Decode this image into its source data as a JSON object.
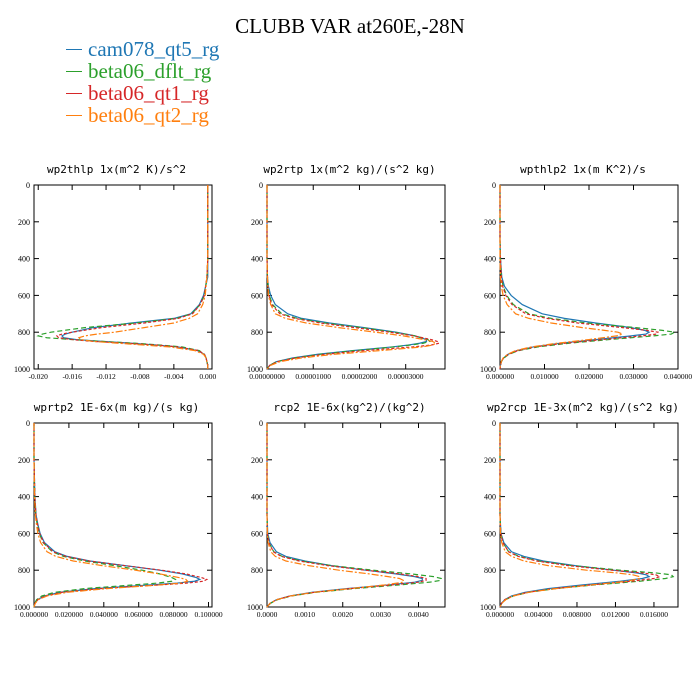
{
  "title": "CLUBB VAR at260E,-28N",
  "colors": {
    "cam078_qt5_rg": "#1f77b4",
    "beta06_dflt_rg": "#2ca02c",
    "beta06_qt1_rg": "#d62728",
    "beta06_qt2_rg": "#ff7f0e"
  },
  "legend": [
    {
      "label": "cam078_qt5_rg",
      "color": "#1f77b4"
    },
    {
      "label": "beta06_dflt_rg",
      "color": "#2ca02c"
    },
    {
      "label": "beta06_qt1_rg",
      "color": "#d62728"
    },
    {
      "label": "beta06_qt2_rg",
      "color": "#ff7f0e"
    }
  ],
  "chart_data": [
    {
      "type": "line",
      "title": "wp2thlp  1x(m^2 K)/s^2",
      "xlim": [
        -0.0205,
        0.0005
      ],
      "ylim": [
        0,
        1000
      ],
      "y_inverted": true,
      "xticks": [
        "-0.020",
        "-0.016",
        "-0.012",
        "-0.008",
        "-0.004",
        "0.000"
      ],
      "xtick_values": [
        -0.02,
        -0.016,
        -0.012,
        -0.008,
        -0.004,
        0.0
      ],
      "yticks": [
        "0",
        "200",
        "400",
        "600",
        "800",
        "1000"
      ],
      "y": [
        0,
        200,
        400,
        500,
        600,
        650,
        700,
        725,
        750,
        775,
        800,
        810,
        820,
        830,
        840,
        850,
        860,
        870,
        880,
        900,
        920,
        940,
        960,
        980,
        1000
      ],
      "series": [
        {
          "name": "cam078_qt5_rg",
          "dash": "solid",
          "values": [
            0,
            0,
            0,
            0,
            -0.0005,
            -0.001,
            -0.002,
            -0.004,
            -0.009,
            -0.0135,
            -0.016,
            -0.0168,
            -0.0172,
            -0.017,
            -0.0155,
            -0.0125,
            -0.009,
            -0.006,
            -0.0035,
            -0.0012,
            -0.0004,
            -0.0002,
            -0.0001,
            0,
            0
          ]
        },
        {
          "name": "beta06_dflt_rg",
          "dash": "5,3",
          "values": [
            0,
            0,
            0,
            -0.0001,
            -0.0004,
            -0.0009,
            -0.0019,
            -0.0037,
            -0.0085,
            -0.0145,
            -0.0185,
            -0.0195,
            -0.02,
            -0.019,
            -0.016,
            -0.0125,
            -0.0085,
            -0.0055,
            -0.003,
            -0.001,
            -0.0004,
            -0.0002,
            -0.0001,
            0,
            0
          ]
        },
        {
          "name": "beta06_qt1_rg",
          "dash": "3,2",
          "values": [
            0,
            0,
            0,
            -0.0001,
            -0.0004,
            -0.0009,
            -0.0018,
            -0.0035,
            -0.0075,
            -0.0125,
            -0.016,
            -0.0172,
            -0.0178,
            -0.0176,
            -0.016,
            -0.0135,
            -0.0095,
            -0.006,
            -0.0035,
            -0.0011,
            -0.0004,
            -0.0002,
            -0.0001,
            0,
            0
          ]
        },
        {
          "name": "beta06_qt2_rg",
          "dash": "7,2,2,2",
          "values": [
            0,
            0,
            0,
            -0.0001,
            -0.0003,
            -0.0006,
            -0.0012,
            -0.0022,
            -0.004,
            -0.0075,
            -0.011,
            -0.013,
            -0.0145,
            -0.0152,
            -0.015,
            -0.0135,
            -0.0105,
            -0.0075,
            -0.0045,
            -0.0015,
            -0.0005,
            -0.0002,
            -0.0001,
            0,
            0
          ]
        }
      ]
    },
    {
      "type": "line",
      "title": "wp2rtp  1x(m^2 kg)/(s^2 kg)",
      "xlim": [
        0,
        3.85e-05
      ],
      "ylim": [
        0,
        1000
      ],
      "y_inverted": true,
      "xticks": [
        "0.00000000",
        "0.00001000",
        "0.00002000",
        "0.00003000"
      ],
      "xtick_values": [
        0,
        1e-05,
        2e-05,
        3e-05
      ],
      "yticks": [
        "0",
        "200",
        "400",
        "600",
        "800",
        "1000"
      ],
      "y": [
        0,
        200,
        400,
        500,
        550,
        600,
        650,
        700,
        725,
        750,
        775,
        800,
        820,
        840,
        850,
        860,
        870,
        880,
        900,
        920,
        940,
        960,
        980,
        1000
      ],
      "series": [
        {
          "name": "cam078_qt5_rg",
          "dash": "solid",
          "values": [
            0,
            0,
            0,
            1e-07,
            3e-07,
            8e-07,
            1.8e-06,
            4.5e-06,
            7.5e-06,
            1.35e-05,
            2.1e-05,
            2.8e-05,
            3.2e-05,
            3.45e-05,
            3.45e-05,
            3.3e-05,
            3.05e-05,
            2.7e-05,
            1.85e-05,
            1.1e-05,
            5.5e-06,
            2e-06,
            6e-07,
            0
          ]
        },
        {
          "name": "beta06_dflt_rg",
          "dash": "5,3",
          "values": [
            0,
            0,
            0,
            1e-07,
            2e-07,
            5e-07,
            1.2e-06,
            3.2e-06,
            6.5e-06,
            1.25e-05,
            2.05e-05,
            2.75e-05,
            3.2e-05,
            3.48e-05,
            3.52e-05,
            3.38e-05,
            3.1e-05,
            2.75e-05,
            1.9e-05,
            1.15e-05,
            5.8e-06,
            2.1e-06,
            6e-07,
            0
          ]
        },
        {
          "name": "beta06_qt1_rg",
          "dash": "3,2",
          "values": [
            0,
            0,
            0,
            1e-07,
            2e-07,
            4e-07,
            1e-06,
            2.8e-06,
            6e-06,
            1.15e-05,
            1.9e-05,
            2.65e-05,
            3.18e-05,
            3.55e-05,
            3.68e-05,
            3.72e-05,
            3.55e-05,
            3.15e-05,
            2.1e-05,
            1.25e-05,
            6.2e-06,
            2.3e-06,
            6e-07,
            0
          ]
        },
        {
          "name": "beta06_qt2_rg",
          "dash": "7,2,2,2",
          "values": [
            0,
            0,
            0,
            1e-07,
            2e-07,
            3e-07,
            8e-07,
            1.8e-06,
            4e-06,
            8.5e-06,
            1.55e-05,
            2.35e-05,
            2.95e-05,
            3.4e-05,
            3.58e-05,
            3.65e-05,
            3.58e-05,
            3.35e-05,
            2.45e-05,
            1.45e-05,
            7.5e-06,
            2.8e-06,
            8e-07,
            0
          ]
        }
      ]
    },
    {
      "type": "line",
      "title": "wpthlp2  1x(m K^2)/s",
      "xlim": [
        0,
        0.04
      ],
      "ylim": [
        0,
        1000
      ],
      "y_inverted": true,
      "xticks": [
        "0.000000",
        "0.010000",
        "0.020000",
        "0.030000",
        "0.040000"
      ],
      "xtick_values": [
        0,
        0.01,
        0.02,
        0.03,
        0.04
      ],
      "yticks": [
        "0",
        "200",
        "400",
        "600",
        "800",
        "1000"
      ],
      "y": [
        0,
        200,
        300,
        400,
        500,
        550,
        600,
        650,
        700,
        725,
        750,
        775,
        790,
        800,
        810,
        820,
        840,
        860,
        880,
        900,
        920,
        940,
        960,
        980,
        1000
      ],
      "series": [
        {
          "name": "cam078_qt5_rg",
          "dash": "solid",
          "values": [
            0,
            0,
            0,
            0.0001,
            0.0004,
            0.001,
            0.0025,
            0.005,
            0.0095,
            0.0145,
            0.0215,
            0.0295,
            0.0325,
            0.0335,
            0.0328,
            0.0295,
            0.0215,
            0.0135,
            0.0075,
            0.0038,
            0.0018,
            0.0008,
            0.0003,
            0.0001,
            0
          ]
        },
        {
          "name": "beta06_dflt_rg",
          "dash": "5,3",
          "values": [
            0,
            0,
            0,
            0.0001,
            0.0003,
            0.0007,
            0.0015,
            0.003,
            0.0065,
            0.0115,
            0.0195,
            0.0305,
            0.0365,
            0.0392,
            0.0385,
            0.0345,
            0.0245,
            0.0155,
            0.0085,
            0.0042,
            0.002,
            0.0009,
            0.0003,
            0.0001,
            0
          ]
        },
        {
          "name": "beta06_qt1_rg",
          "dash": "3,2",
          "values": [
            0,
            0,
            0,
            0.0001,
            0.0003,
            0.0006,
            0.0013,
            0.0027,
            0.0058,
            0.0105,
            0.0175,
            0.0275,
            0.033,
            0.0355,
            0.0352,
            0.032,
            0.023,
            0.0145,
            0.0078,
            0.004,
            0.0019,
            0.0008,
            0.0003,
            0.0001,
            0
          ]
        },
        {
          "name": "beta06_qt2_rg",
          "dash": "7,2,2,2",
          "values": [
            0,
            0,
            0,
            0,
            0.0001,
            0.0003,
            0.0007,
            0.0016,
            0.0035,
            0.0065,
            0.0115,
            0.0185,
            0.0235,
            0.0265,
            0.0275,
            0.0262,
            0.02,
            0.0128,
            0.007,
            0.0035,
            0.0017,
            0.0007,
            0.0003,
            0.0001,
            0
          ]
        }
      ]
    },
    {
      "type": "line",
      "title": "wprtp2  1E-6x(m kg)/(s kg)",
      "xlim": [
        0,
        0.102
      ],
      "ylim": [
        0,
        1000
      ],
      "y_inverted": true,
      "xticks": [
        "0.000000",
        "0.020000",
        "0.040000",
        "0.060000",
        "0.080000",
        "0.100000"
      ],
      "xtick_values": [
        0,
        0.02,
        0.04,
        0.06,
        0.08,
        0.1
      ],
      "yticks": [
        "0",
        "200",
        "400",
        "600",
        "800",
        "1000"
      ],
      "y": [
        0,
        200,
        400,
        500,
        550,
        600,
        650,
        700,
        725,
        750,
        775,
        800,
        820,
        840,
        850,
        860,
        870,
        880,
        900,
        920,
        940,
        960,
        980,
        1000
      ],
      "series": [
        {
          "name": "cam078_qt5_rg",
          "dash": "solid",
          "values": [
            0,
            0,
            0.0005,
            0.0012,
            0.0022,
            0.0035,
            0.006,
            0.012,
            0.019,
            0.032,
            0.052,
            0.072,
            0.085,
            0.093,
            0.095,
            0.092,
            0.082,
            0.066,
            0.035,
            0.015,
            0.006,
            0.002,
            0.0006,
            0
          ]
        },
        {
          "name": "beta06_dflt_rg",
          "dash": "5,3",
          "values": [
            0,
            0,
            0.0004,
            0.001,
            0.0018,
            0.003,
            0.0052,
            0.0105,
            0.017,
            0.029,
            0.046,
            0.062,
            0.072,
            0.079,
            0.081,
            0.079,
            0.071,
            0.057,
            0.029,
            0.012,
            0.0045,
            0.0015,
            0.0004,
            0
          ]
        },
        {
          "name": "beta06_qt1_rg",
          "dash": "3,2",
          "values": [
            0,
            0,
            0.0005,
            0.0011,
            0.002,
            0.0032,
            0.0055,
            0.011,
            0.0185,
            0.0315,
            0.052,
            0.073,
            0.087,
            0.096,
            0.099,
            0.097,
            0.088,
            0.072,
            0.038,
            0.016,
            0.0065,
            0.0022,
            0.0006,
            0
          ]
        },
        {
          "name": "beta06_qt2_rg",
          "dash": "7,2,2,2",
          "values": [
            0,
            0,
            0.0003,
            0.0008,
            0.0014,
            0.0022,
            0.0038,
            0.0075,
            0.0125,
            0.0225,
            0.039,
            0.058,
            0.072,
            0.083,
            0.087,
            0.088,
            0.084,
            0.072,
            0.042,
            0.019,
            0.0075,
            0.0025,
            0.0007,
            0
          ]
        }
      ]
    },
    {
      "type": "line",
      "title": "rcp2  1E-6x(kg^2)/(kg^2)",
      "xlim": [
        0,
        0.0047
      ],
      "ylim": [
        0,
        1000
      ],
      "y_inverted": true,
      "xticks": [
        "0.0000",
        "0.0010",
        "0.0020",
        "0.0030",
        "0.0040"
      ],
      "xtick_values": [
        0,
        0.001,
        0.002,
        0.003,
        0.004
      ],
      "yticks": [
        "0",
        "200",
        "400",
        "600",
        "800",
        "1000"
      ],
      "y": [
        0,
        200,
        400,
        500,
        600,
        650,
        700,
        725,
        750,
        775,
        800,
        820,
        835,
        845,
        855,
        865,
        880,
        900,
        920,
        940,
        960,
        980,
        1000
      ],
      "series": [
        {
          "name": "cam078_qt5_rg",
          "dash": "solid",
          "values": [
            0,
            0,
            0,
            0,
            2e-05,
            8e-05,
            0.00025,
            0.0005,
            0.001,
            0.0017,
            0.0026,
            0.0034,
            0.0039,
            0.0041,
            0.0041,
            0.0039,
            0.0032,
            0.0021,
            0.0012,
            0.0006,
            0.00025,
            8e-05,
            0
          ]
        },
        {
          "name": "beta06_dflt_rg",
          "dash": "5,3",
          "values": [
            0,
            0,
            0,
            0,
            1e-05,
            5e-05,
            0.00018,
            0.0004,
            0.0009,
            0.0017,
            0.0028,
            0.0038,
            0.0044,
            0.0046,
            0.0046,
            0.0043,
            0.0035,
            0.0023,
            0.0013,
            0.00065,
            0.00028,
            9e-05,
            0
          ]
        },
        {
          "name": "beta06_qt1_rg",
          "dash": "3,2",
          "values": [
            0,
            0,
            0,
            0,
            1e-05,
            5e-05,
            0.00017,
            0.00038,
            0.00085,
            0.0016,
            0.0026,
            0.0035,
            0.004,
            0.0042,
            0.0042,
            0.004,
            0.0033,
            0.0022,
            0.00125,
            0.00062,
            0.00026,
            8e-05,
            0
          ]
        },
        {
          "name": "beta06_qt2_rg",
          "dash": "7,2,2,2",
          "values": [
            0,
            0,
            0,
            0,
            1e-05,
            3e-05,
            0.0001,
            0.00022,
            0.0005,
            0.0011,
            0.0019,
            0.0027,
            0.0032,
            0.0035,
            0.0036,
            0.0036,
            0.0031,
            0.0022,
            0.00125,
            0.00062,
            0.00026,
            8e-05,
            0
          ]
        }
      ]
    },
    {
      "type": "line",
      "title": "wp2rcp  1E-3x(m^2 kg)/(s^2 kg)",
      "xlim": [
        0,
        0.0185
      ],
      "ylim": [
        0,
        1000
      ],
      "y_inverted": true,
      "xticks": [
        "0.000000",
        "0.004000",
        "0.008000",
        "0.012000",
        "0.016000"
      ],
      "xtick_values": [
        0,
        0.004,
        0.008,
        0.012,
        0.016
      ],
      "yticks": [
        "0",
        "200",
        "400",
        "600",
        "800",
        "1000"
      ],
      "y": [
        0,
        200,
        400,
        500,
        600,
        650,
        700,
        725,
        750,
        775,
        800,
        815,
        825,
        835,
        845,
        860,
        880,
        900,
        920,
        940,
        960,
        980,
        1000
      ],
      "series": [
        {
          "name": "cam078_qt5_rg",
          "dash": "solid",
          "values": [
            0,
            0,
            0,
            0,
            0.0001,
            0.0004,
            0.0012,
            0.0025,
            0.0045,
            0.0078,
            0.0118,
            0.0142,
            0.0152,
            0.0155,
            0.0148,
            0.0125,
            0.0085,
            0.005,
            0.0026,
            0.0012,
            0.0005,
            0.00015,
            0
          ]
        },
        {
          "name": "beta06_dflt_rg",
          "dash": "5,3",
          "values": [
            0,
            0,
            0,
            0,
            8e-05,
            0.0003,
            0.0009,
            0.002,
            0.004,
            0.0075,
            0.0125,
            0.0162,
            0.0178,
            0.018,
            0.0172,
            0.0145,
            0.0098,
            0.0058,
            0.003,
            0.0014,
            0.0006,
            0.00018,
            0
          ]
        },
        {
          "name": "beta06_qt1_rg",
          "dash": "3,2",
          "values": [
            0,
            0,
            0,
            0,
            8e-05,
            0.0003,
            0.0009,
            0.0019,
            0.0038,
            0.0071,
            0.0116,
            0.0148,
            0.0162,
            0.0166,
            0.016,
            0.0137,
            0.0094,
            0.0056,
            0.0029,
            0.0013,
            0.0005,
            0.00016,
            0
          ]
        },
        {
          "name": "beta06_qt2_rg",
          "dash": "7,2,2,2",
          "values": [
            0,
            0,
            0,
            0,
            5e-05,
            0.00018,
            0.00055,
            0.0012,
            0.0025,
            0.005,
            0.009,
            0.0122,
            0.0138,
            0.0145,
            0.0145,
            0.0132,
            0.0095,
            0.0058,
            0.003,
            0.0014,
            0.0006,
            0.00018,
            0
          ]
        }
      ]
    }
  ]
}
